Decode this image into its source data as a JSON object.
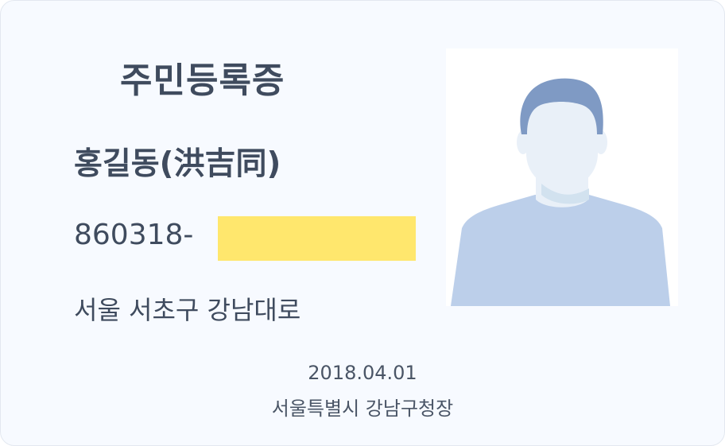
{
  "card": {
    "title": "주민등록증",
    "name": "홍길동(洪吉同)",
    "rrn_front": "860318-",
    "address": "서울 서초구 강남대로",
    "issue_date": "2018.04.01",
    "issuer": "서울특별시 강남구청장"
  },
  "colors": {
    "card_background": "#f7faff",
    "text": "#3f4b5e",
    "redaction_highlight": "#ffe76d",
    "photo_background": "#ffffff",
    "shirt": "#bccfea",
    "hair": "#7f9ac4",
    "skin": "#e9f0f8"
  },
  "icons": {
    "photo": "person-silhouette-icon"
  }
}
